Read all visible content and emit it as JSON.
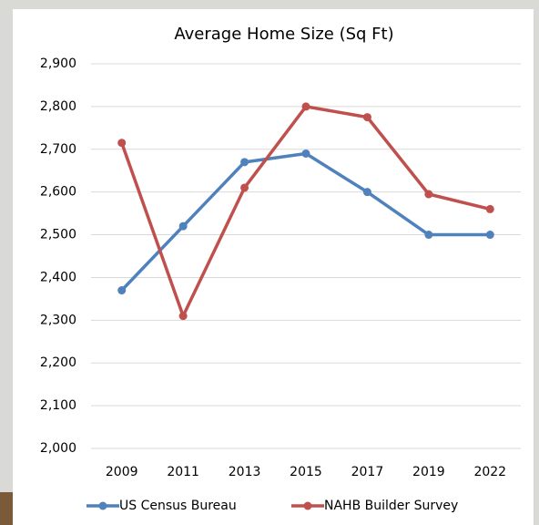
{
  "chart_data": {
    "type": "line",
    "title": "Average Home Size (Sq Ft)",
    "categories": [
      "2009",
      "2011",
      "2013",
      "2015",
      "2017",
      "2019",
      "2022"
    ],
    "series": [
      {
        "name": "US Census Bureau",
        "color": "#4f81bd",
        "values": [
          2370,
          2520,
          2670,
          2690,
          2600,
          2500,
          2500
        ]
      },
      {
        "name": "NAHB Builder Survey",
        "color": "#c0504d",
        "values": [
          2715,
          2310,
          2610,
          2800,
          2775,
          2595,
          2560
        ]
      }
    ],
    "ylim": [
      2000,
      2900
    ],
    "yticks": [
      {
        "value": 2000,
        "label": "2,000"
      },
      {
        "value": 2100,
        "label": "2,100"
      },
      {
        "value": 2200,
        "label": "2,200"
      },
      {
        "value": 2300,
        "label": "2,300"
      },
      {
        "value": 2400,
        "label": "2,400"
      },
      {
        "value": 2500,
        "label": "2,500"
      },
      {
        "value": 2600,
        "label": "2,600"
      },
      {
        "value": 2700,
        "label": "2,700"
      },
      {
        "value": 2800,
        "label": "2,800"
      },
      {
        "value": 2900,
        "label": "2,900"
      }
    ],
    "grid": true,
    "legend": "bottom"
  }
}
